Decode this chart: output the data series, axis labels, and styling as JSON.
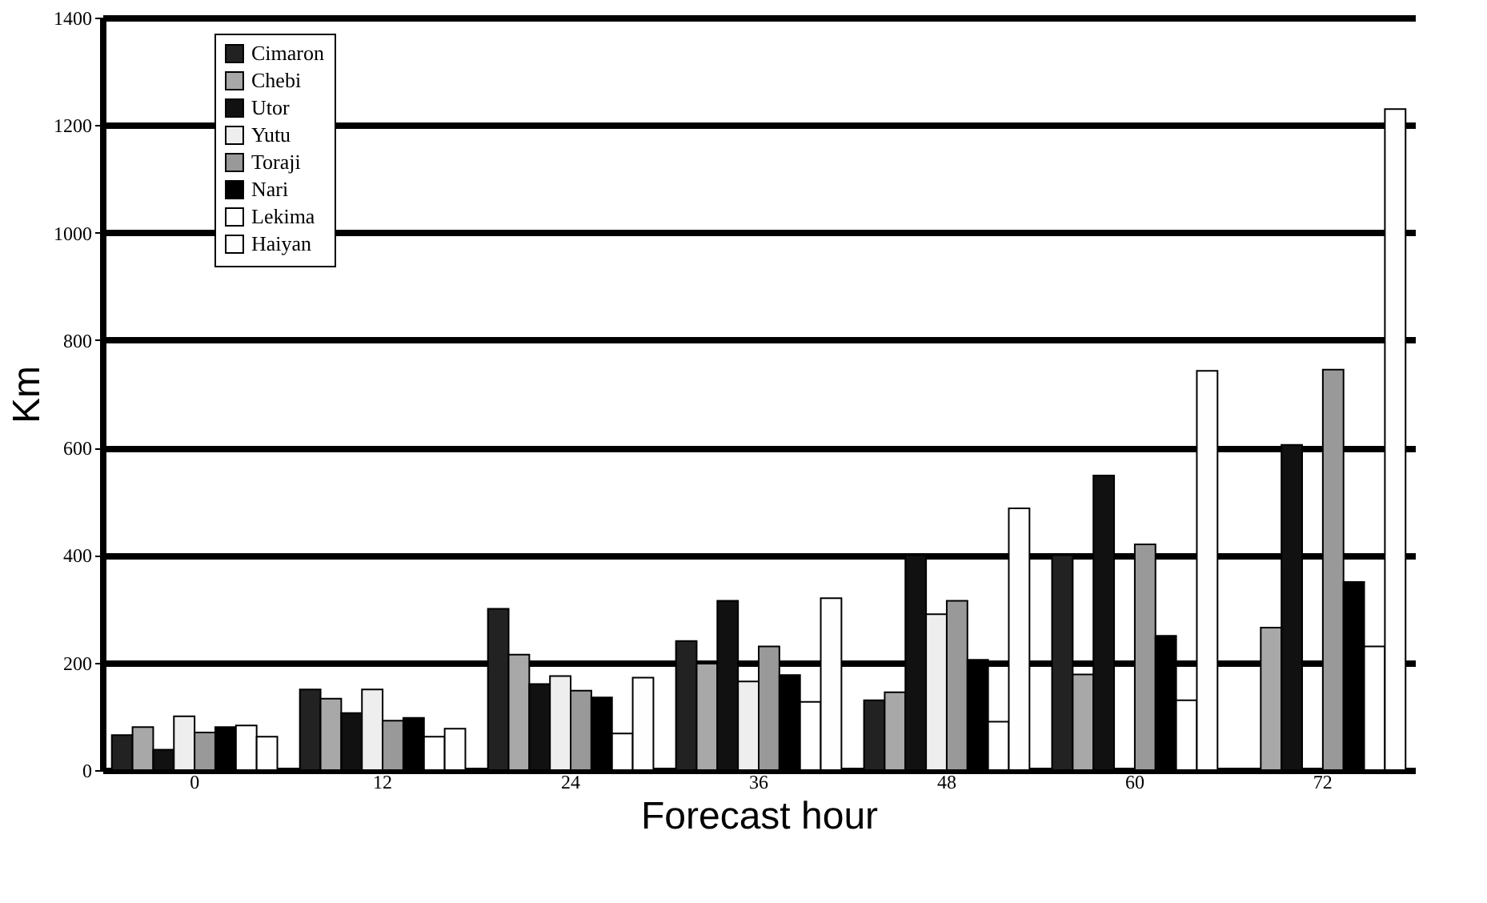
{
  "chart_data": {
    "type": "bar",
    "xlabel": "Forecast hour",
    "ylabel": "Km",
    "categories": [
      "0",
      "12",
      "24",
      "36",
      "48",
      "60",
      "72"
    ],
    "series": [
      {
        "name": "Cimaron",
        "color": "#222222",
        "values": [
          65,
          150,
          300,
          240,
          130,
          400,
          null
        ]
      },
      {
        "name": "Chebi",
        "color": "#a8a8a8",
        "values": [
          80,
          133,
          215,
          198,
          145,
          178,
          265
        ]
      },
      {
        "name": "Utor",
        "color": "#111111",
        "values": [
          38,
          106,
          160,
          315,
          400,
          548,
          605
        ]
      },
      {
        "name": "Yutu",
        "color": "#eeeeee",
        "values": [
          100,
          150,
          175,
          165,
          290,
          null,
          null
        ]
      },
      {
        "name": "Toraji",
        "color": "#999999",
        "values": [
          70,
          92,
          148,
          230,
          315,
          420,
          745
        ]
      },
      {
        "name": "Nari",
        "color": "#000000",
        "values": [
          80,
          97,
          135,
          177,
          205,
          250,
          350
        ]
      },
      {
        "name": "Lekima",
        "color": "#ffffff",
        "values": [
          83,
          62,
          68,
          127,
          90,
          130,
          230
        ]
      },
      {
        "name": "Haiyan",
        "color": "#fefefe",
        "values": [
          62,
          77,
          172,
          320,
          487,
          743,
          1230
        ]
      }
    ],
    "ylim": [
      0,
      1400
    ],
    "yticks": [
      0,
      200,
      400,
      600,
      800,
      1000,
      1200,
      1400
    ],
    "grid": "y",
    "legend": "top left"
  }
}
